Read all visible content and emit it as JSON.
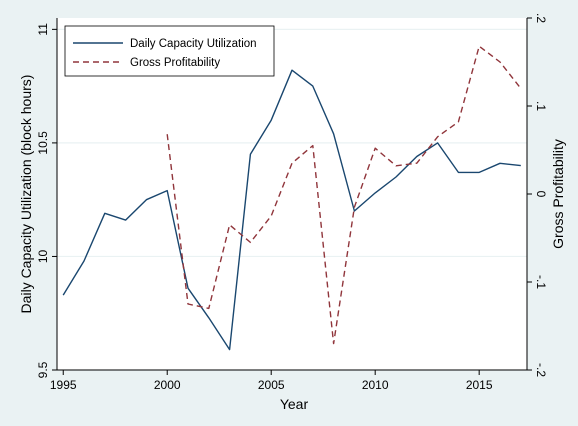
{
  "chart_data": {
    "type": "line",
    "title": "",
    "xlabel": "Year",
    "ylabel_left": "Daily Capacity Utilization (block hours)",
    "ylabel_right": "Gross Profitability",
    "xlim": [
      1994.7,
      2017.3
    ],
    "ylim_left": [
      9.5,
      11.05
    ],
    "ylim_right": [
      -0.2,
      0.2
    ],
    "xticks": [
      "1995",
      "2000",
      "2005",
      "2010",
      "2015"
    ],
    "xtick_values": [
      1995,
      2000,
      2005,
      2010,
      2015
    ],
    "yticks_left": [
      "9.5",
      "10",
      "10.5",
      "11"
    ],
    "ytick_left_values": [
      9.5,
      10,
      10.5,
      11
    ],
    "yticks_right": [
      "-.2",
      "-.1",
      "0",
      ".1",
      ".2"
    ],
    "ytick_right_values": [
      -0.2,
      -0.1,
      0,
      0.1,
      0.2
    ],
    "grid": true,
    "legend_position": "top-left",
    "colors": {
      "utilization": "#1a476f",
      "profitability": "#90353b",
      "background": "#eaf2f3",
      "plot_background": "#ffffff",
      "grid": "#eaf2f3"
    },
    "series": [
      {
        "name": "Daily Capacity Utilization",
        "axis": "left",
        "style": "solid",
        "x": [
          1995,
          1996,
          1997,
          1998,
          1999,
          2000,
          2001,
          2002,
          2003,
          2004,
          2005,
          2006,
          2007,
          2008,
          2009,
          2010,
          2011,
          2012,
          2013,
          2014,
          2015,
          2016,
          2017
        ],
        "values": [
          9.83,
          9.98,
          10.19,
          10.16,
          10.25,
          10.29,
          9.86,
          9.73,
          9.59,
          10.45,
          10.6,
          10.82,
          10.75,
          10.54,
          10.2,
          10.28,
          10.35,
          10.44,
          10.5,
          10.37,
          10.37,
          10.41,
          10.4
        ]
      },
      {
        "name": "Gross Profitability",
        "axis": "right",
        "style": "dashed",
        "x": [
          2000,
          2001,
          2002,
          2003,
          2004,
          2005,
          2006,
          2007,
          2008,
          2009,
          2010,
          2011,
          2012,
          2013,
          2014,
          2015,
          2016,
          2017
        ],
        "values": [
          0.068,
          -0.125,
          -0.13,
          -0.035,
          -0.055,
          -0.025,
          0.035,
          0.055,
          -0.17,
          -0.015,
          0.052,
          0.032,
          0.035,
          0.065,
          0.082,
          0.168,
          0.15,
          0.12
        ]
      }
    ]
  }
}
